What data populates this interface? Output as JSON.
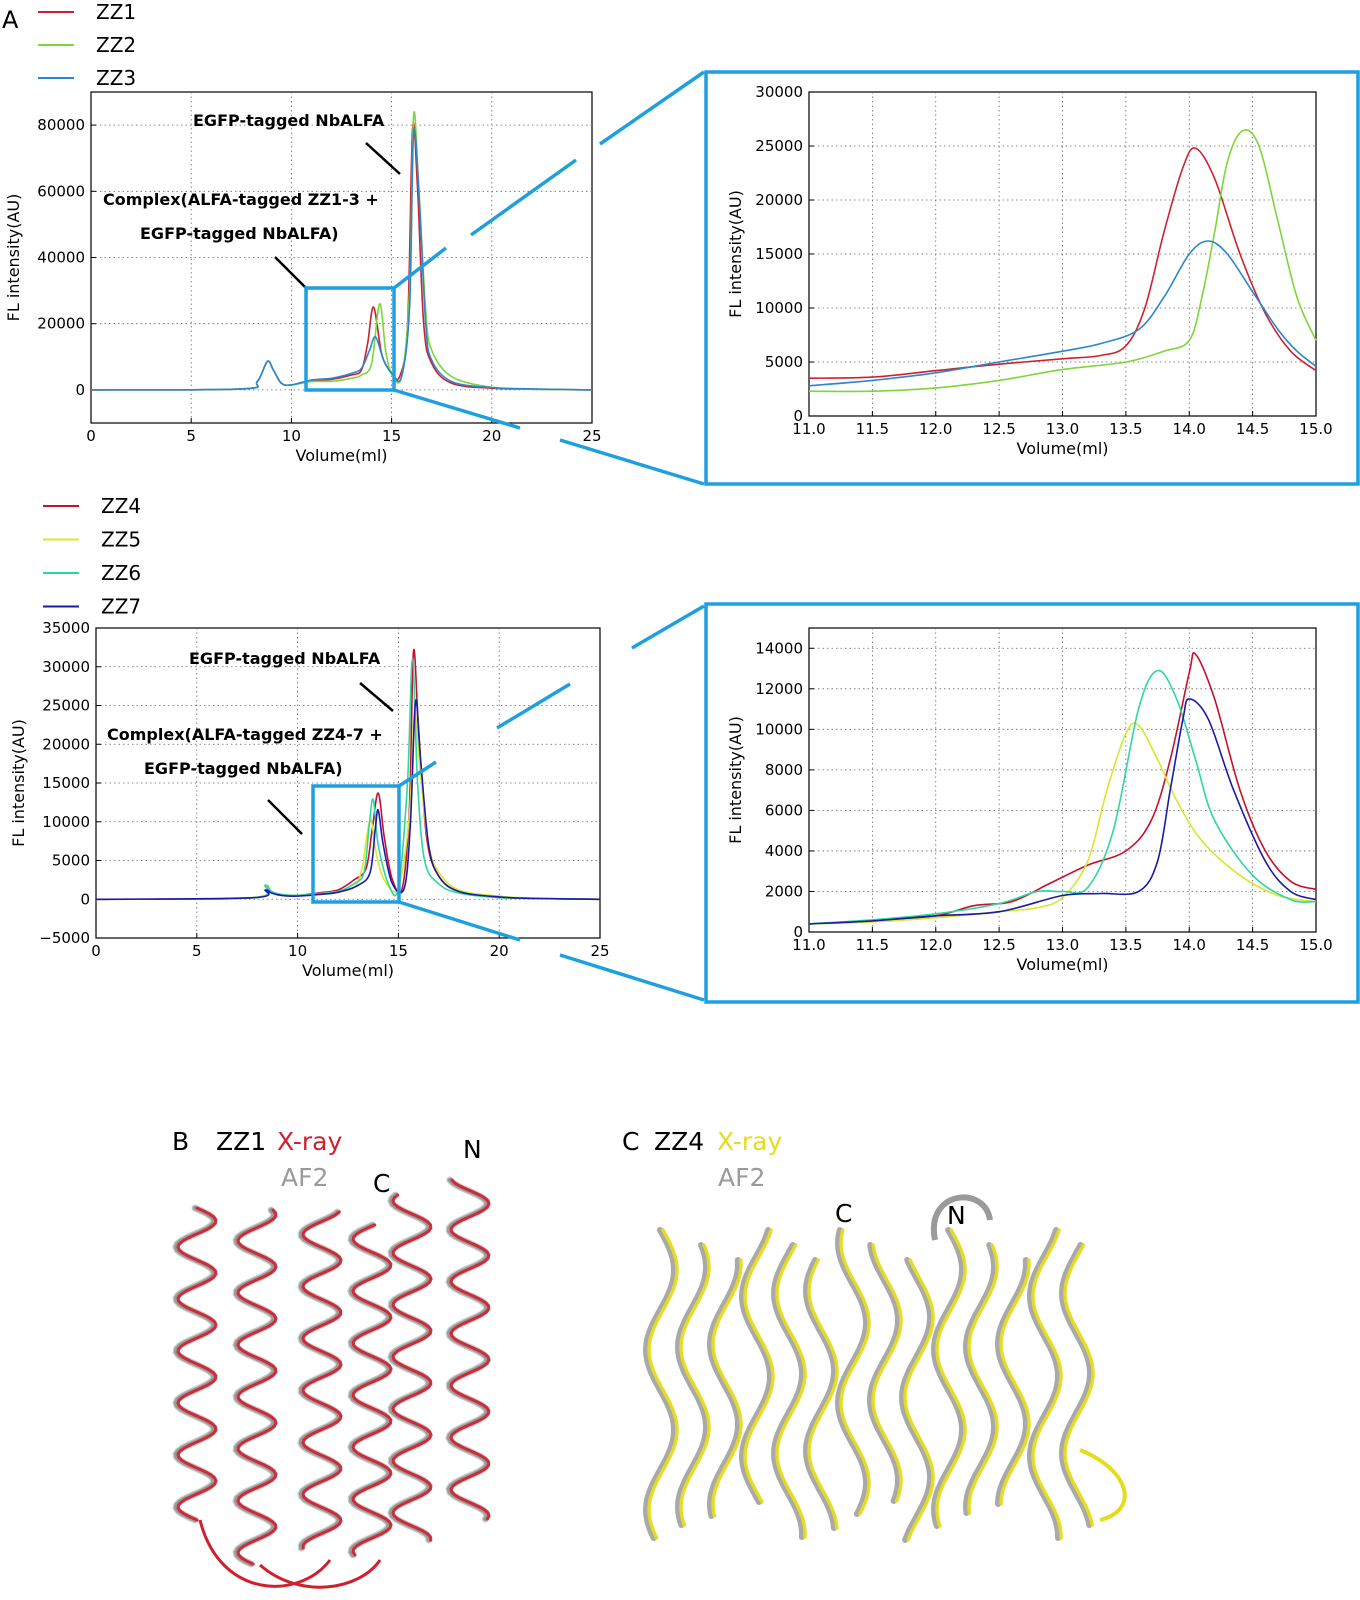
{
  "panels": {
    "A": {
      "label": "A"
    },
    "B": {
      "label": "B",
      "name": "ZZ1",
      "xray": "X-ray",
      "af2": "AF2",
      "c_term": "C",
      "n_term": "N"
    },
    "C": {
      "label": "C",
      "name": "ZZ4",
      "xray": "X-ray",
      "af2": "AF2",
      "c_term": "C",
      "n_term": "N"
    }
  },
  "annotations": {
    "top_peak": "EGFP-tagged NbALFA",
    "top_complex_1": "Complex(ALFA-tagged ZZ1-3 +",
    "top_complex_2": "EGFP-tagged NbALFA)",
    "bot_peak": "EGFP-tagged NbALFA",
    "bot_complex_1": "Complex(ALFA-tagged ZZ4-7 +",
    "bot_complex_2": "EGFP-tagged NbALFA)"
  },
  "colors": {
    "ZZ1": "#d0202e",
    "ZZ2": "#7ed63a",
    "ZZ3": "#2a86cf",
    "ZZ4": "#c8102e",
    "ZZ5": "#d8e82a",
    "ZZ6": "#2ed6a0",
    "ZZ7": "#1a1aa8",
    "zoom_box": "#1ea0e0",
    "xray_b": "#d0202e",
    "xray_c": "#e6dc1e",
    "af2": "#9a9a9a"
  },
  "chart_data": [
    {
      "id": "top-main",
      "type": "line",
      "xlabel": "Volume(ml)",
      "ylabel": "FL intensity(AU)",
      "xlim": [
        0,
        25
      ],
      "ylim": [
        -10000,
        90000
      ],
      "xticks": [
        0,
        5,
        10,
        15,
        20,
        25
      ],
      "yticks": [
        0,
        20000,
        40000,
        60000,
        80000
      ],
      "grid": true,
      "legend": "top-left",
      "series": [
        {
          "name": "ZZ1",
          "x": [
            0,
            7.5,
            8.3,
            8.8,
            9.1,
            9.5,
            10,
            11,
            12,
            13,
            13.5,
            13.8,
            14.1,
            14.5,
            14.9,
            15.4,
            15.8,
            16.05,
            16.3,
            16.6,
            17,
            18,
            20,
            22,
            25
          ],
          "y": [
            0,
            300,
            2500,
            8600,
            6000,
            2000,
            1500,
            2800,
            3200,
            4500,
            6000,
            14000,
            25000,
            11000,
            6000,
            4000,
            20000,
            79000,
            60000,
            20000,
            8000,
            2000,
            500,
            200,
            0
          ]
        },
        {
          "name": "ZZ2",
          "x": [
            0,
            7.5,
            8.3,
            8.8,
            9.1,
            9.5,
            10,
            11,
            12,
            13,
            13.5,
            14,
            14.4,
            14.7,
            15,
            15.5,
            15.9,
            16.1,
            16.35,
            16.7,
            17,
            18,
            20,
            22,
            25
          ],
          "y": [
            0,
            300,
            2500,
            8600,
            6000,
            2000,
            1500,
            2500,
            2600,
            3500,
            4500,
            8000,
            26000,
            12000,
            5000,
            4000,
            30000,
            83000,
            62000,
            24000,
            12000,
            4000,
            800,
            200,
            0
          ]
        },
        {
          "name": "ZZ3",
          "x": [
            0,
            7.5,
            8.3,
            8.8,
            9.1,
            9.5,
            10,
            11,
            12,
            13,
            13.5,
            13.9,
            14.2,
            14.6,
            15,
            15.5,
            15.9,
            16.1,
            16.4,
            16.7,
            17,
            18,
            20,
            22,
            25
          ],
          "y": [
            0,
            300,
            2500,
            8600,
            6000,
            2000,
            1500,
            3000,
            3500,
            5000,
            6500,
            12000,
            16000,
            9000,
            5000,
            4000,
            25000,
            78000,
            55000,
            20000,
            9000,
            2500,
            700,
            300,
            0
          ]
        }
      ]
    },
    {
      "id": "top-zoom",
      "type": "line",
      "xlabel": "Volume(ml)",
      "ylabel": "FL intensity(AU)",
      "xlim": [
        11.0,
        15.0
      ],
      "ylim": [
        0,
        30000
      ],
      "xticks": [
        "11.0",
        "11.5",
        "12.0",
        "12.5",
        "13.0",
        "13.5",
        "14.0",
        "14.5",
        "15.0"
      ],
      "yticks": [
        0,
        5000,
        10000,
        15000,
        20000,
        25000,
        30000
      ],
      "grid": true,
      "series": [
        {
          "name": "ZZ1",
          "x": [
            11.0,
            11.5,
            12.0,
            12.5,
            13.0,
            13.3,
            13.5,
            13.65,
            13.8,
            13.95,
            14.05,
            14.2,
            14.4,
            14.6,
            14.8,
            15.0
          ],
          "y": [
            3500,
            3600,
            4200,
            4800,
            5300,
            5600,
            6500,
            10000,
            17000,
            23000,
            24800,
            22000,
            15000,
            9500,
            6000,
            4200
          ]
        },
        {
          "name": "ZZ2",
          "x": [
            11.0,
            11.5,
            12.0,
            12.5,
            13.0,
            13.5,
            13.8,
            14.0,
            14.1,
            14.2,
            14.3,
            14.42,
            14.55,
            14.7,
            14.85,
            15.0
          ],
          "y": [
            2300,
            2300,
            2600,
            3300,
            4300,
            5000,
            6000,
            7000,
            11000,
            17000,
            23500,
            26400,
            25000,
            18000,
            11000,
            7000
          ]
        },
        {
          "name": "ZZ3",
          "x": [
            11.0,
            11.5,
            12.0,
            12.5,
            13.0,
            13.3,
            13.6,
            13.8,
            14.0,
            14.15,
            14.3,
            14.5,
            14.7,
            14.85,
            15.0
          ],
          "y": [
            2800,
            3300,
            4000,
            5000,
            6000,
            6700,
            8000,
            11000,
            15000,
            16200,
            15000,
            11500,
            8000,
            6000,
            4600
          ]
        }
      ]
    },
    {
      "id": "bottom-main",
      "type": "line",
      "xlabel": "Volume(ml)",
      "ylabel": "FL intensity(AU)",
      "xlim": [
        0,
        25
      ],
      "ylim": [
        -5000,
        35000
      ],
      "xticks": [
        0,
        5,
        10,
        15,
        20,
        25
      ],
      "yticks": [
        -5000,
        0,
        5000,
        10000,
        15000,
        20000,
        25000,
        30000,
        35000
      ],
      "grid": true,
      "legend": "top-left",
      "series": [
        {
          "name": "ZZ4",
          "x": [
            0,
            7.8,
            8.4,
            8.7,
            9.2,
            10,
            11,
            12,
            12.8,
            13.4,
            13.7,
            14.0,
            14.3,
            14.7,
            15.2,
            15.55,
            15.75,
            16.0,
            16.4,
            17,
            18,
            20,
            22,
            25
          ],
          "y": [
            0,
            200,
            1800,
            1000,
            600,
            500,
            800,
            1200,
            2500,
            4000,
            9000,
            13700,
            8000,
            2500,
            1500,
            12000,
            32000,
            22000,
            8000,
            3000,
            1000,
            300,
            100,
            0
          ]
        },
        {
          "name": "ZZ5",
          "x": [
            0,
            7.8,
            8.4,
            8.7,
            9.2,
            10,
            11,
            12,
            12.8,
            13.2,
            13.45,
            13.65,
            13.9,
            14.3,
            15.0,
            15.55,
            15.8,
            16.1,
            16.5,
            17,
            18,
            20,
            22,
            25
          ],
          "y": [
            0,
            200,
            1800,
            1000,
            600,
            500,
            700,
            1000,
            1500,
            4000,
            8500,
            10200,
            6000,
            2500,
            1500,
            11000,
            24000,
            16000,
            7000,
            3500,
            1200,
            400,
            100,
            0
          ]
        },
        {
          "name": "ZZ6",
          "x": [
            0,
            7.8,
            8.4,
            8.7,
            9.2,
            10,
            11,
            12,
            12.8,
            13.3,
            13.55,
            13.75,
            14.0,
            14.5,
            15.0,
            15.45,
            15.7,
            15.95,
            16.3,
            17,
            18,
            20,
            22,
            25
          ],
          "y": [
            0,
            200,
            1800,
            1000,
            600,
            500,
            700,
            1000,
            2000,
            3500,
            9500,
            12900,
            7000,
            2000,
            1500,
            15000,
            31000,
            15000,
            5000,
            2000,
            800,
            200,
            100,
            0
          ]
        },
        {
          "name": "ZZ7",
          "x": [
            0,
            7.8,
            8.4,
            8.7,
            9.2,
            10,
            11,
            12,
            13,
            13.6,
            13.85,
            14.0,
            14.25,
            14.7,
            15.3,
            15.6,
            15.85,
            16.1,
            16.5,
            17,
            18,
            20,
            22,
            25
          ],
          "y": [
            0,
            200,
            1200,
            800,
            500,
            400,
            600,
            900,
            1800,
            3500,
            9000,
            11500,
            7000,
            2000,
            1500,
            10000,
            25500,
            18000,
            7000,
            3000,
            1000,
            300,
            100,
            0
          ]
        }
      ]
    },
    {
      "id": "bottom-zoom",
      "type": "line",
      "xlabel": "Volume(ml)",
      "ylabel": "FL intensity(AU)",
      "xlim": [
        11.0,
        15.0
      ],
      "ylim": [
        0,
        15000
      ],
      "xticks": [
        "11.0",
        "11.5",
        "12.0",
        "12.5",
        "13.0",
        "13.5",
        "14.0",
        "14.5",
        "15.0"
      ],
      "yticks": [
        0,
        2000,
        4000,
        6000,
        8000,
        10000,
        12000,
        14000
      ],
      "grid": true,
      "series": [
        {
          "name": "ZZ4",
          "x": [
            11.0,
            11.5,
            12.0,
            12.3,
            12.6,
            12.9,
            13.2,
            13.5,
            13.7,
            13.85,
            14.0,
            14.05,
            14.2,
            14.4,
            14.6,
            14.8,
            15.0
          ],
          "y": [
            400,
            550,
            800,
            1300,
            1500,
            2400,
            3300,
            4000,
            5500,
            8500,
            12800,
            13700,
            11500,
            7000,
            4000,
            2500,
            2100
          ]
        },
        {
          "name": "ZZ5",
          "x": [
            11.0,
            11.5,
            12.0,
            12.5,
            12.8,
            13.0,
            13.2,
            13.35,
            13.5,
            13.6,
            13.75,
            13.9,
            14.1,
            14.4,
            14.7,
            15.0
          ],
          "y": [
            400,
            500,
            700,
            1000,
            1200,
            1700,
            3500,
            7000,
            9800,
            10200,
            8500,
            6500,
            4500,
            2800,
            1800,
            1500
          ]
        },
        {
          "name": "ZZ6",
          "x": [
            11.0,
            11.5,
            12.0,
            12.5,
            12.8,
            13.0,
            13.2,
            13.4,
            13.6,
            13.75,
            13.9,
            14.05,
            14.2,
            14.5,
            14.8,
            15.0
          ],
          "y": [
            400,
            600,
            900,
            1400,
            2000,
            2000,
            2200,
            5000,
            11000,
            12900,
            11500,
            8500,
            5500,
            2800,
            1600,
            1500
          ]
        },
        {
          "name": "ZZ7",
          "x": [
            11.0,
            11.5,
            12.0,
            12.5,
            13.0,
            13.3,
            13.6,
            13.75,
            13.85,
            13.95,
            14.0,
            14.15,
            14.35,
            14.6,
            14.8,
            15.0
          ],
          "y": [
            400,
            550,
            800,
            1000,
            1800,
            1900,
            2000,
            3500,
            7000,
            10500,
            11500,
            10500,
            7000,
            3500,
            2000,
            1600
          ]
        }
      ]
    }
  ]
}
